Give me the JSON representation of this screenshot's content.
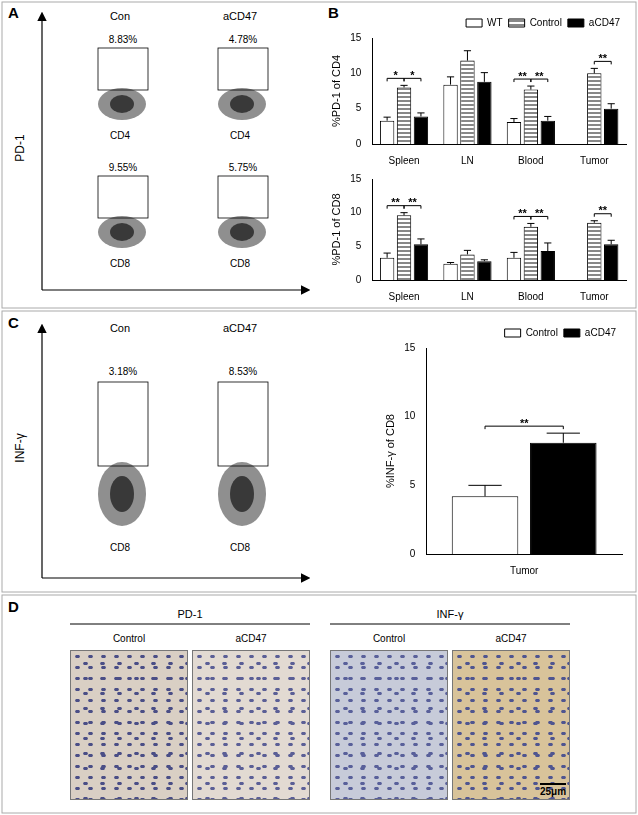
{
  "panel_labels": [
    "A",
    "B",
    "C",
    "D"
  ],
  "flow_panels": [
    {
      "y_label": "PD-1",
      "titles": [
        "Con",
        "aCD47"
      ],
      "rows": [
        {
          "x_label": "CD4",
          "gates": [
            "8.83%",
            "4.78%"
          ]
        },
        {
          "x_label": "CD8",
          "gates": [
            "9.55%",
            "5.75%"
          ]
        }
      ]
    },
    {
      "y_label": "INF-γ",
      "titles": [
        "Con",
        "aCD47"
      ],
      "rows": [
        {
          "x_label": "CD8",
          "gates": [
            "3.18%",
            "8.53%"
          ]
        }
      ]
    }
  ],
  "chart_data": [
    {
      "type": "bar",
      "y_label": "%PD-1 of CD4",
      "categories": [
        "Spleen",
        "LN",
        "Blood",
        "Tumor"
      ],
      "series": [
        {
          "name": "WT",
          "color": "#ffffff",
          "values": [
            3.3,
            8.4,
            3.1,
            null
          ],
          "errors": [
            0.5,
            1.1,
            0.5,
            null
          ]
        },
        {
          "name": "Control",
          "color": "#888888",
          "values": [
            8.0,
            11.8,
            7.7,
            10.0
          ],
          "errors": [
            0.3,
            1.4,
            0.5,
            0.7
          ]
        },
        {
          "name": "aCD47",
          "color": "#000000",
          "values": [
            3.9,
            8.8,
            3.3,
            5.0
          ],
          "errors": [
            0.5,
            1.3,
            0.6,
            0.7
          ]
        }
      ],
      "ylim": [
        0,
        15
      ],
      "yticks": [
        0,
        5,
        10,
        15
      ],
      "grid": false,
      "legend": "top right",
      "significance": [
        {
          "category": "Spleen",
          "between": [
            "WT",
            "Control"
          ],
          "label": "*"
        },
        {
          "category": "Spleen",
          "between": [
            "Control",
            "aCD47"
          ],
          "label": "*"
        },
        {
          "category": "Blood",
          "between": [
            "WT",
            "Control"
          ],
          "label": "**"
        },
        {
          "category": "Blood",
          "between": [
            "Control",
            "aCD47"
          ],
          "label": "**"
        },
        {
          "category": "Tumor",
          "between": [
            "Control",
            "aCD47"
          ],
          "label": "**"
        }
      ]
    },
    {
      "type": "bar",
      "y_label": "%PD-1 of CD8",
      "categories": [
        "Spleen",
        "LN",
        "Blood",
        "Tumor"
      ],
      "series": [
        {
          "name": "WT",
          "color": "#ffffff",
          "values": [
            3.3,
            2.4,
            3.3,
            null
          ],
          "errors": [
            0.7,
            0.2,
            0.8,
            null
          ]
        },
        {
          "name": "Control",
          "color": "#888888",
          "values": [
            9.6,
            3.8,
            7.9,
            8.5
          ],
          "errors": [
            0.4,
            0.6,
            0.5,
            0.3
          ]
        },
        {
          "name": "aCD47",
          "color": "#000000",
          "values": [
            5.3,
            2.8,
            4.3,
            5.3
          ],
          "errors": [
            0.8,
            0.2,
            1.2,
            0.6
          ]
        }
      ],
      "ylim": [
        0,
        15
      ],
      "yticks": [
        0,
        5,
        10,
        15
      ],
      "grid": false,
      "significance": [
        {
          "category": "Spleen",
          "between": [
            "WT",
            "Control"
          ],
          "label": "**"
        },
        {
          "category": "Spleen",
          "between": [
            "Control",
            "aCD47"
          ],
          "label": "**"
        },
        {
          "category": "Blood",
          "between": [
            "WT",
            "Control"
          ],
          "label": "**"
        },
        {
          "category": "Blood",
          "between": [
            "Control",
            "aCD47"
          ],
          "label": "**"
        },
        {
          "category": "Tumor",
          "between": [
            "Control",
            "aCD47"
          ],
          "label": "**"
        }
      ]
    },
    {
      "type": "bar",
      "y_label": "%INF-γ of CD8",
      "categories": [
        "Tumor"
      ],
      "series": [
        {
          "name": "Control",
          "color": "#ffffff",
          "values": [
            4.2
          ],
          "errors": [
            0.8
          ]
        },
        {
          "name": "aCD47",
          "color": "#000000",
          "values": [
            8.1
          ],
          "errors": [
            0.7
          ]
        }
      ],
      "ylim": [
        0,
        15
      ],
      "yticks": [
        0,
        5,
        10,
        15
      ],
      "grid": false,
      "legend": "top right",
      "significance": [
        {
          "category": "Tumor",
          "between": [
            "Control",
            "aCD47"
          ],
          "label": "**"
        }
      ]
    }
  ],
  "images": {
    "groups": [
      {
        "title": "PD-1",
        "labels": [
          "Control",
          "aCD47"
        ]
      },
      {
        "title": "INF-γ",
        "labels": [
          "Control",
          "aCD47"
        ]
      }
    ],
    "scale_bar": "25μm"
  }
}
